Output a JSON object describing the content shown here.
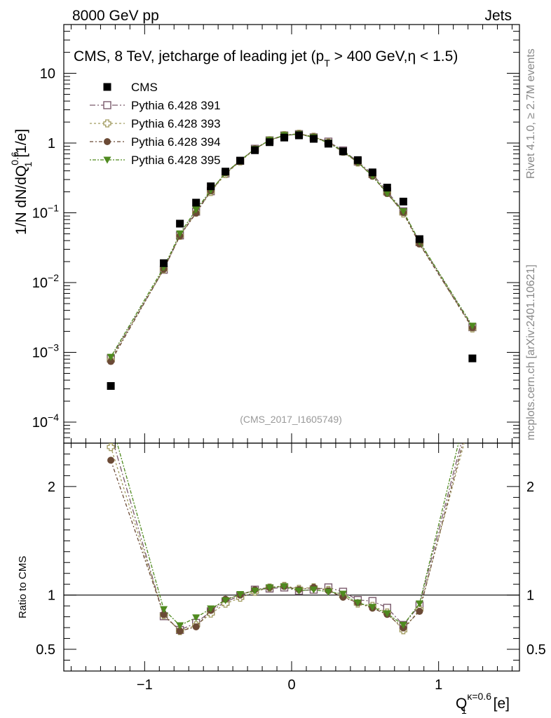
{
  "header": {
    "left": "8000 GeV pp",
    "right": "Jets"
  },
  "side_labels": {
    "rivet": "Rivet 4.1.0, ≥ 2.7M events",
    "source": "mcplots.cern.ch [arXiv:2401.10621]"
  },
  "chart_data": {
    "type": "scatter",
    "title": {
      "before_pt": "CMS, 8 TeV, jetcharge of leading jet (p",
      "pt_sub": "T",
      "after_pt": " > 400 GeV,η < 1.5)"
    },
    "analysis_id": "(CMS_2017_I1605749)",
    "ylabel": {
      "prefix": "1/N dN/dQ",
      "sup": "0.6",
      "sub": "1",
      "suffix": " [1/e]"
    },
    "xlabel": {
      "main": "Q",
      "sup": "κ=0.6",
      "sub": "1",
      "suffix": " [e]"
    },
    "ratio_ylabel": "Ratio to CMS",
    "x_range": [
      -1.55,
      1.55
    ],
    "y_range_log": [
      5e-05,
      50
    ],
    "ratio_range": [
      0.3,
      2.4
    ],
    "x_ticks": [
      {
        "value": -1,
        "label": "−1"
      },
      {
        "value": 0,
        "label": "0"
      },
      {
        "value": 1,
        "label": "1"
      }
    ],
    "y_ticks": [
      {
        "exp": 1,
        "label": "10"
      },
      {
        "exp": 0,
        "label": "1"
      },
      {
        "exp": -1,
        "base": "10",
        "sup": "−1"
      },
      {
        "exp": -2,
        "base": "10",
        "sup": "−2"
      },
      {
        "exp": -3,
        "base": "10",
        "sup": "−3"
      },
      {
        "exp": -4,
        "base": "10",
        "sup": "−4"
      }
    ],
    "ratio_ticks": [
      {
        "value": 0.5,
        "label": "0.5"
      },
      {
        "value": 1,
        "label": "1"
      },
      {
        "value": 2,
        "label": "2"
      }
    ],
    "x": [
      -1.23,
      -0.87,
      -0.76,
      -0.65,
      -0.55,
      -0.45,
      -0.35,
      -0.25,
      -0.15,
      -0.05,
      0.05,
      0.15,
      0.25,
      0.35,
      0.45,
      0.55,
      0.65,
      0.76,
      0.87,
      1.23
    ],
    "reference": {
      "name": "CMS",
      "values": [
        0.00033,
        0.019,
        0.07,
        0.14,
        0.24,
        0.39,
        0.56,
        0.79,
        1.03,
        1.2,
        1.29,
        1.15,
        0.98,
        0.76,
        0.57,
        0.38,
        0.23,
        0.145,
        0.042,
        0.00082
      ]
    },
    "series": [
      {
        "name": "Pythia 6.428 391",
        "color": "#7a5a6c",
        "marker": "open-square",
        "values": [
          0.00082,
          0.0153,
          0.0475,
          0.104,
          0.204,
          0.366,
          0.556,
          0.829,
          1.092,
          1.284,
          1.342,
          1.207,
          1.049,
          0.783,
          0.544,
          0.359,
          0.203,
          0.105,
          0.038,
          0.0023
        ]
      },
      {
        "name": "Pythia 6.428 393",
        "color": "#a09a5e",
        "marker": "open-cross",
        "values": [
          0.00078,
          0.0155,
          0.0468,
          0.101,
          0.199,
          0.359,
          0.546,
          0.813,
          1.102,
          1.302,
          1.364,
          1.233,
          1.026,
          0.753,
          0.525,
          0.342,
          0.193,
          0.098,
          0.0365,
          0.0022
        ]
      },
      {
        "name": "Pythia 6.428 394",
        "color": "#6b4a36",
        "marker": "filled-circle",
        "values": [
          0.00074,
          0.0156,
          0.0468,
          0.099,
          0.206,
          0.375,
          0.56,
          0.829,
          1.102,
          1.296,
          1.355,
          1.231,
          1.019,
          0.745,
          0.53,
          0.334,
          0.189,
          0.101,
          0.0357,
          0.00225
        ]
      },
      {
        "name": "Pythia 6.428 395",
        "color": "#4f8a1f",
        "marker": "filled-triangle-down",
        "values": [
          0.00086,
          0.0165,
          0.0504,
          0.111,
          0.21,
          0.371,
          0.564,
          0.821,
          1.102,
          1.296,
          1.342,
          1.207,
          1.009,
          0.768,
          0.53,
          0.338,
          0.191,
          0.105,
          0.0387,
          0.0024
        ]
      }
    ]
  }
}
